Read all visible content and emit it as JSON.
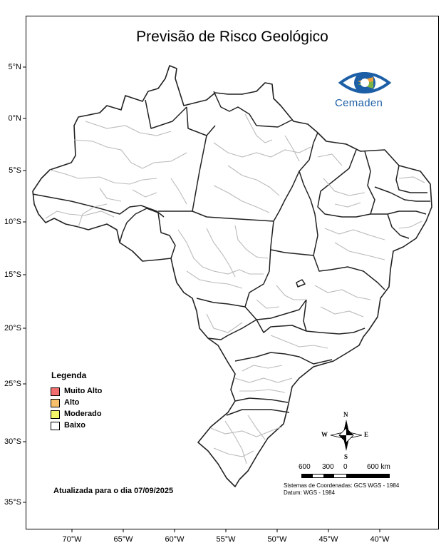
{
  "map": {
    "title": "Previsão de Risco Geológico",
    "latitude_labels": [
      "5°N",
      "0°N",
      "5°S",
      "10°S",
      "15°S",
      "20°S",
      "25°S",
      "30°S",
      "35°S"
    ],
    "longitude_labels": [
      "70°W",
      "65°W",
      "60°W",
      "55°W",
      "50°W",
      "45°W",
      "40°W"
    ]
  },
  "logo": {
    "text": "Cemaden",
    "color": "#1d5fa6"
  },
  "legend": {
    "title": "Legenda",
    "items": [
      {
        "label": "Muito Alto",
        "color": "#f26d6d"
      },
      {
        "label": "Alto",
        "color": "#f7c16b"
      },
      {
        "label": "Moderado",
        "color": "#f5f56a"
      },
      {
        "label": "Baixo",
        "color": "#ffffff"
      }
    ]
  },
  "updated_text": "Atualizada para o dia 07/09/2025",
  "compass": {
    "north": "N",
    "south": "S",
    "east": "E",
    "west": "W"
  },
  "scale": {
    "labels": [
      "600",
      "300",
      "0",
      "600 km"
    ]
  },
  "coordinate_system": "Sistemas de Coordenadas: GCS WGS - 1984",
  "datum": "Datum: WGS - 1984"
}
